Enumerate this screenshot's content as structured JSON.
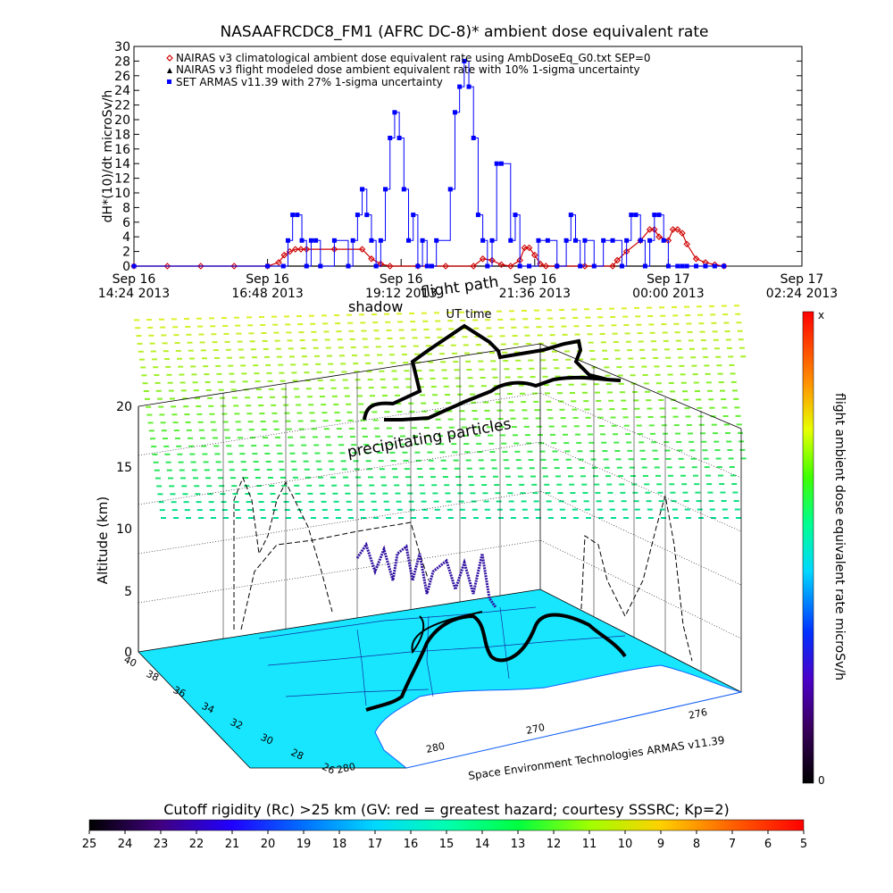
{
  "top_chart": {
    "title": "NASAAFRCDC8_FM1 (AFRC DC-8)* ambient dose equivalent rate",
    "ylabel": "dH*(10)/dt microSv/h",
    "legend": [
      "NAIRAS v3 climatological ambient dose equivalent rate using AmbDoseEq_G0.txt SEP=0",
      "NAIRAS v3 flight modeled dose ambient equivalent rate with 10% 1-sigma uncertainty",
      "SET ARMAS v11.39 with 27% 1-sigma uncertainty"
    ],
    "x_ticks": [
      {
        "line1": "Sep 16",
        "line2": "14:24 2013"
      },
      {
        "line1": "Sep 16",
        "line2": "16:48 2013"
      },
      {
        "line1": "Sep 16",
        "line2": "19:12 2013"
      },
      {
        "line1": "Sep 16",
        "line2": "21:36 2013"
      },
      {
        "line1": "Sep 17",
        "line2": "00:00 2013"
      },
      {
        "line1": "Sep 17",
        "line2": "02:24 2013"
      }
    ],
    "y_ticks": [
      "0",
      "2",
      "4",
      "6",
      "8",
      "10",
      "12",
      "14",
      "16",
      "18",
      "20",
      "22",
      "24",
      "26",
      "28",
      "30"
    ]
  },
  "chart_data": [
    {
      "type": "line",
      "title": "NASAAFRCDC8_FM1 (AFRC DC-8)* ambient dose equivalent rate",
      "xlabel": "UT time",
      "ylabel": "dH*(10)/dt microSv/h",
      "xlim": [
        "Sep 16 14:24 2013",
        "Sep 17 02:24 2013"
      ],
      "ylim": [
        0,
        30
      ],
      "legend_position": "top-left",
      "series": [
        {
          "name": "NAIRAS v3 climatological ambient dose equivalent rate using AmbDoseEq_G0.txt SEP=0",
          "color": "#d00000",
          "marker": "diamond",
          "x": [
            "14:24",
            "15:00",
            "15:36",
            "16:12",
            "16:48",
            "17:00",
            "17:06",
            "17:12",
            "17:18",
            "17:24",
            "17:30",
            "18:00",
            "18:30",
            "18:40",
            "18:50",
            "19:00",
            "19:30",
            "20:00",
            "20:30",
            "20:40",
            "20:50",
            "21:00",
            "21:10",
            "21:20",
            "21:25",
            "21:30",
            "21:36",
            "21:42",
            "21:48",
            "22:00",
            "22:30",
            "23:00",
            "23:05",
            "23:15",
            "23:30",
            "23:40",
            "23:45",
            "23:50",
            "24:00",
            "24:05",
            "24:10",
            "24:15",
            "24:20",
            "24:30",
            "24:40",
            "24:50",
            "25:00"
          ],
          "y": [
            0,
            0,
            0,
            0,
            0,
            0.5,
            1.5,
            2,
            2.3,
            2.3,
            2.3,
            2.3,
            2.3,
            1,
            0.3,
            0,
            0,
            0,
            0,
            1,
            0.8,
            0.2,
            0,
            0.8,
            2.5,
            2.5,
            1.5,
            0.3,
            0,
            0,
            0,
            0,
            0.8,
            2,
            3.5,
            5,
            5,
            4,
            3.5,
            5,
            5,
            4.5,
            3,
            1,
            0.5,
            0.2,
            0
          ]
        },
        {
          "name": "NAIRAS v3 flight modeled dose ambient equivalent rate with 10% 1-sigma uncertainty",
          "color": "#000000",
          "marker": "triangle",
          "x": [
            "14:24",
            "25:00"
          ],
          "y": [
            0,
            0
          ]
        },
        {
          "name": "SET ARMAS v11.39 with 27% 1-sigma uncertainty",
          "color": "#0000ff",
          "marker": "square",
          "x": [
            "14:24",
            "16:48",
            "17:05",
            "17:10",
            "17:15",
            "17:20",
            "17:25",
            "17:30",
            "17:35",
            "17:40",
            "17:45",
            "18:00",
            "18:15",
            "18:20",
            "18:25",
            "18:30",
            "18:35",
            "18:40",
            "18:45",
            "18:50",
            "18:55",
            "19:00",
            "19:05",
            "19:10",
            "19:15",
            "19:20",
            "19:25",
            "19:30",
            "19:35",
            "19:40",
            "19:45",
            "19:50",
            "20:05",
            "20:10",
            "20:15",
            "20:20",
            "20:25",
            "20:30",
            "20:35",
            "20:40",
            "20:45",
            "20:50",
            "20:55",
            "21:00",
            "21:10",
            "21:15",
            "21:20",
            "21:30",
            "21:40",
            "21:50",
            "22:00",
            "22:10",
            "22:15",
            "22:20",
            "22:25",
            "22:30",
            "22:40",
            "22:50",
            "23:00",
            "23:10",
            "23:15",
            "23:20",
            "23:25",
            "23:30",
            "23:35",
            "23:40",
            "23:45",
            "23:50",
            "23:55",
            "24:00",
            "24:10",
            "24:15",
            "24:20",
            "24:30",
            "24:40",
            "24:50",
            "25:00"
          ],
          "y": [
            0,
            0,
            0,
            3.5,
            7,
            7,
            3.5,
            0,
            3.5,
            3.5,
            0,
            3.5,
            0,
            3.5,
            7,
            10.5,
            7,
            3.5,
            0,
            3.5,
            10.5,
            17.5,
            21,
            17.5,
            10.5,
            3.5,
            7,
            0,
            3.5,
            0,
            0,
            3.5,
            10.5,
            21,
            24.5,
            28,
            24.5,
            17.5,
            7,
            3.5,
            0,
            3.5,
            14,
            14,
            3.5,
            7,
            0,
            0,
            3.5,
            3.5,
            0,
            3.5,
            7,
            3.5,
            0,
            3.5,
            0,
            3.5,
            3.5,
            0,
            3.5,
            7,
            7,
            3.5,
            0,
            3.5,
            7,
            7,
            3.5,
            0,
            0,
            0,
            0,
            0,
            0,
            0,
            0
          ]
        }
      ]
    },
    {
      "type": "scatter",
      "subtype": "3d-flight-path",
      "ylabel": "Altitude (km)",
      "zlim": [
        0,
        20
      ],
      "z_ticks": [
        "0",
        "5",
        "10",
        "15",
        "20"
      ],
      "lat_ticks": [
        "40",
        "38",
        "36",
        "34",
        "32",
        "30",
        "28",
        "26"
      ],
      "lon_ticks": [
        "280",
        "270",
        "276"
      ],
      "annotations": [
        "flight path",
        "shadow",
        "precipitating particles"
      ],
      "credit": "Space Environment Technologies ARMAS v11.39",
      "colorbar_label": "flight ambient dose equivalent rate microSv/h",
      "colorbar_range": [
        "0",
        "x"
      ]
    }
  ],
  "bottom_colorbar": {
    "title": "Cutoff rigidity (Rc) >25 km (GV: red = greatest hazard; courtesy SSSRC; Kp=2)",
    "ticks": [
      "25",
      "24",
      "23",
      "22",
      "21",
      "20",
      "19",
      "18",
      "17",
      "16",
      "15",
      "14",
      "13",
      "12",
      "11",
      "10",
      "9",
      "8",
      "7",
      "6",
      "5"
    ]
  },
  "colors": {
    "nairas_climatological": "#d00000",
    "nairas_flight": "#000000",
    "armas": "#0000ff",
    "land": "#18e6ff",
    "water": "#ffffff"
  }
}
